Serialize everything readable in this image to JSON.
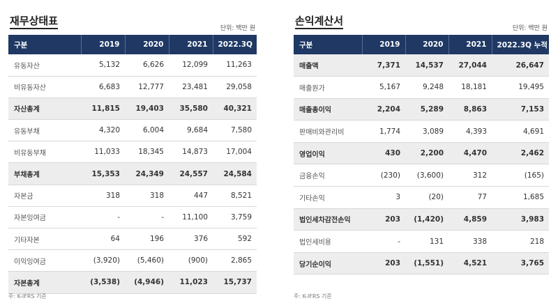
{
  "balance_sheet": {
    "title": "재무상태표",
    "unit": "단위: 백만 원",
    "headers": [
      "구분",
      "2019",
      "2020",
      "2021",
      "2022.3Q"
    ],
    "rows": [
      {
        "label": "유동자산",
        "values": [
          "5,132",
          "6,626",
          "12,099",
          "11,263"
        ],
        "total": false
      },
      {
        "label": "비유동자산",
        "values": [
          "6,683",
          "12,777",
          "23,481",
          "29,058"
        ],
        "total": false
      },
      {
        "label": "자산총계",
        "values": [
          "11,815",
          "19,403",
          "35,580",
          "40,321"
        ],
        "total": true
      },
      {
        "label": "유동부채",
        "values": [
          "4,320",
          "6,004",
          "9,684",
          "7,580"
        ],
        "total": false
      },
      {
        "label": "비유동부채",
        "values": [
          "11,033",
          "18,345",
          "14,873",
          "17,004"
        ],
        "total": false
      },
      {
        "label": "부채총계",
        "values": [
          "15,353",
          "24,349",
          "24,557",
          "24,584"
        ],
        "total": true
      },
      {
        "label": "자본금",
        "values": [
          "318",
          "318",
          "447",
          "8,521"
        ],
        "total": false
      },
      {
        "label": "자본잉여금",
        "values": [
          "-",
          "-",
          "11,100",
          "3,759"
        ],
        "total": false
      },
      {
        "label": "기타자본",
        "values": [
          "64",
          "196",
          "376",
          "592"
        ],
        "total": false
      },
      {
        "label": "이익잉여금",
        "values": [
          "(3,920)",
          "(5,460)",
          "(900)",
          "2,865"
        ],
        "total": false
      },
      {
        "label": "자본총계",
        "values": [
          "(3,538)",
          "(4,946)",
          "11,023",
          "15,737"
        ],
        "total": true
      }
    ],
    "note": "주: K-IFRS 기준"
  },
  "income_statement": {
    "title": "손익계산서",
    "unit": "단위: 백만 원",
    "headers": [
      "구분",
      "2019",
      "2020",
      "2021",
      "2022.3Q 누적"
    ],
    "rows": [
      {
        "label": "매출액",
        "values": [
          "7,371",
          "14,537",
          "27,044",
          "26,647"
        ],
        "total": true
      },
      {
        "label": "매출원가",
        "values": [
          "5,167",
          "9,248",
          "18,181",
          "19,495"
        ],
        "total": false
      },
      {
        "label": "매출총이익",
        "values": [
          "2,204",
          "5,289",
          "8,863",
          "7,153"
        ],
        "total": true
      },
      {
        "label": "판매비와관리비",
        "values": [
          "1,774",
          "3,089",
          "4,393",
          "4,691"
        ],
        "total": false
      },
      {
        "label": "영업이익",
        "values": [
          "430",
          "2,200",
          "4,470",
          "2,462"
        ],
        "total": true
      },
      {
        "label": "금융손익",
        "values": [
          "(230)",
          "(3,600)",
          "312",
          "(165)"
        ],
        "total": false
      },
      {
        "label": "기타손익",
        "values": [
          "3",
          "(20)",
          "77",
          "1,685"
        ],
        "total": false
      },
      {
        "label": "법인세차감전손익",
        "values": [
          "203",
          "(1,420)",
          "4,859",
          "3,983"
        ],
        "total": true
      },
      {
        "label": "법인세비용",
        "values": [
          "-",
          "131",
          "338",
          "218"
        ],
        "total": false
      },
      {
        "label": "당기순이익",
        "values": [
          "203",
          "(1,551)",
          "4,521",
          "3,765"
        ],
        "total": true
      }
    ],
    "note": "주: K-IFRS 기준"
  }
}
